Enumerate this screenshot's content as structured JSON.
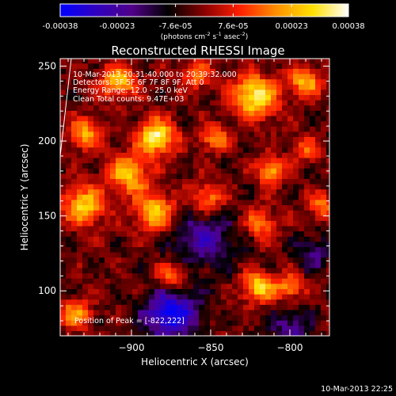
{
  "colorbar": {
    "tick_labels": [
      "-0.00038",
      "-0.00023",
      "-7.6e-05",
      "7.6e-05",
      "0.00023",
      "0.00038"
    ],
    "tick_values": [
      -0.00038,
      -0.00023,
      -7.6e-05,
      7.6e-05,
      0.00023,
      0.00038
    ],
    "range": [
      -0.00038,
      0.00038
    ],
    "unit_prefix": "(photons cm",
    "unit_exp1": "-2",
    "unit_mid": " s",
    "unit_exp2": "-1",
    "unit_mid2": " asec",
    "unit_exp3": "-2",
    "unit_suffix": ")",
    "colors": [
      "#0000ff",
      "#3000c0",
      "#500088",
      "#000000",
      "#8a0000",
      "#ff2000",
      "#ff9000",
      "#ffe000",
      "#ffffff"
    ]
  },
  "chart_data": {
    "type": "heatmap",
    "title": "Reconstructed RHESSI Image",
    "xlabel": "Heliocentric X (arcsec)",
    "ylabel": "Heliocentric Y (arcsec)",
    "xlim": [
      -945,
      -775
    ],
    "ylim": [
      70,
      255
    ],
    "x_ticks": [
      -900,
      -850,
      -800
    ],
    "x_tick_labels": [
      "−900",
      "−850",
      "−800"
    ],
    "y_ticks": [
      100,
      150,
      200,
      250
    ],
    "y_tick_labels": [
      "100",
      "150",
      "200",
      "250"
    ],
    "peak": [
      -822,
      222
    ],
    "limb_line": [
      [
        -945,
        190
      ],
      [
        -938,
        255
      ]
    ],
    "sources": [
      {
        "x": -884,
        "y": 203,
        "amp": 1.0,
        "sigma": 8
      },
      {
        "x": -902,
        "y": 178,
        "amp": 0.75,
        "sigma": 9
      },
      {
        "x": -930,
        "y": 157,
        "amp": 0.8,
        "sigma": 9
      },
      {
        "x": -885,
        "y": 153,
        "amp": 0.75,
        "sigma": 9
      },
      {
        "x": -908,
        "y": 240,
        "amp": 0.7,
        "sigma": 8
      },
      {
        "x": -930,
        "y": 205,
        "amp": 0.65,
        "sigma": 7
      },
      {
        "x": -822,
        "y": 230,
        "amp": 0.95,
        "sigma": 10
      },
      {
        "x": -790,
        "y": 240,
        "amp": 0.7,
        "sigma": 7
      },
      {
        "x": -812,
        "y": 180,
        "amp": 0.75,
        "sigma": 6
      },
      {
        "x": -848,
        "y": 202,
        "amp": 0.6,
        "sigma": 6
      },
      {
        "x": -852,
        "y": 162,
        "amp": 0.6,
        "sigma": 7
      },
      {
        "x": -818,
        "y": 145,
        "amp": 0.55,
        "sigma": 7
      },
      {
        "x": -780,
        "y": 157,
        "amp": 0.55,
        "sigma": 6
      },
      {
        "x": -820,
        "y": 103,
        "amp": 0.85,
        "sigma": 7
      },
      {
        "x": -800,
        "y": 103,
        "amp": 0.6,
        "sigma": 6
      },
      {
        "x": -875,
        "y": 110,
        "amp": 0.55,
        "sigma": 7
      },
      {
        "x": -935,
        "y": 85,
        "amp": 0.6,
        "sigma": 7
      },
      {
        "x": -860,
        "y": 245,
        "amp": 0.5,
        "sigma": 7
      },
      {
        "x": -790,
        "y": 195,
        "amp": 0.45,
        "sigma": 6
      },
      {
        "x": -875,
        "y": 85,
        "amp": -0.9,
        "sigma": 12
      },
      {
        "x": -855,
        "y": 135,
        "amp": -0.5,
        "sigma": 14
      },
      {
        "x": -800,
        "y": 75,
        "amp": -0.45,
        "sigma": 9
      },
      {
        "x": -785,
        "y": 125,
        "amp": -0.4,
        "sigma": 8
      }
    ]
  },
  "annotations": {
    "line1": "10-Mar-2013 20:31:40.000 to 20:39:32.000",
    "line2": "Detectors: 3F 5F 6F 7F 8F 9F, Att 0",
    "line3": "Energy Range: 12.0 - 25.0 keV",
    "line4": "Clean     Total counts: 9.47E+03",
    "peak_label": "Position of Peak = [-822,222]"
  },
  "footer": {
    "timestamp": "10-Mar-2013 22:25"
  }
}
